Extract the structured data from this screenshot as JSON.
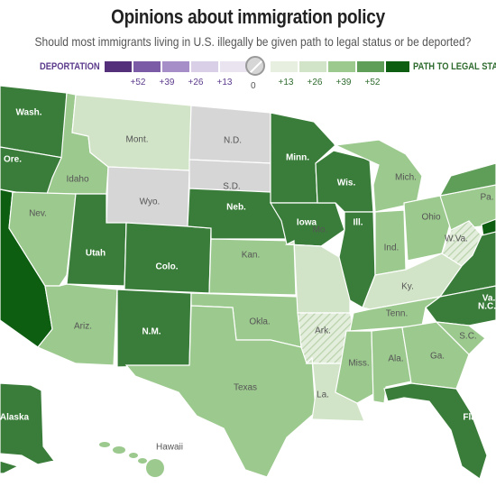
{
  "title": "Opinions about immigration policy",
  "subtitle": "Should most immigrants living in U.S. illegally be given path to legal status or be deported?",
  "legend": {
    "deportation_label": "DEPORTATION",
    "legal_label": "PATH TO LEGAL STATUS",
    "zero": "0",
    "deport_ticks": [
      "+52",
      "+39",
      "+26",
      "+13"
    ],
    "legal_ticks": [
      "+13",
      "+26",
      "+39",
      "+52"
    ],
    "deport_colors": [
      "#54307a",
      "#7b5aa6",
      "#a68ec8",
      "#d9cfe6"
    ],
    "legal_colors": [
      "#d2e4c8",
      "#9cc98e",
      "#5f9e58",
      "#3a7d3a",
      "#0e5e12"
    ],
    "neutral_color": "#d6d6d6"
  },
  "states": {
    "wa": "Wash.",
    "or": "Ore.",
    "id": "Idaho",
    "mt": "Mont.",
    "wy": "Wyo.",
    "nd": "N.D.",
    "sd": "S.D.",
    "mn": "Minn.",
    "wi": "Wis.",
    "mi": "Mich.",
    "nv": "Nev.",
    "ut": "Utah",
    "co": "Colo.",
    "ne": "Neb.",
    "ia": "Iowa",
    "il": "Ill.",
    "in": "Ind.",
    "oh": "Ohio",
    "pa": "Pa.",
    "wv": "W.Va.",
    "va": "Va.",
    "ks": "Kan.",
    "mo": "Mo.",
    "ky": "Ky.",
    "nc": "N.C.",
    "az": "Ariz.",
    "nm": "N.M.",
    "ok": "Okla.",
    "ar": "Ark.",
    "tn": "Tenn.",
    "sc": "S.C.",
    "ms": "Miss.",
    "al": "Ala.",
    "ga": "Ga.",
    "tx": "Texas",
    "la": "La.",
    "fl": "Fla.",
    "ak": "Alaska",
    "hi": "Hawaii"
  }
}
